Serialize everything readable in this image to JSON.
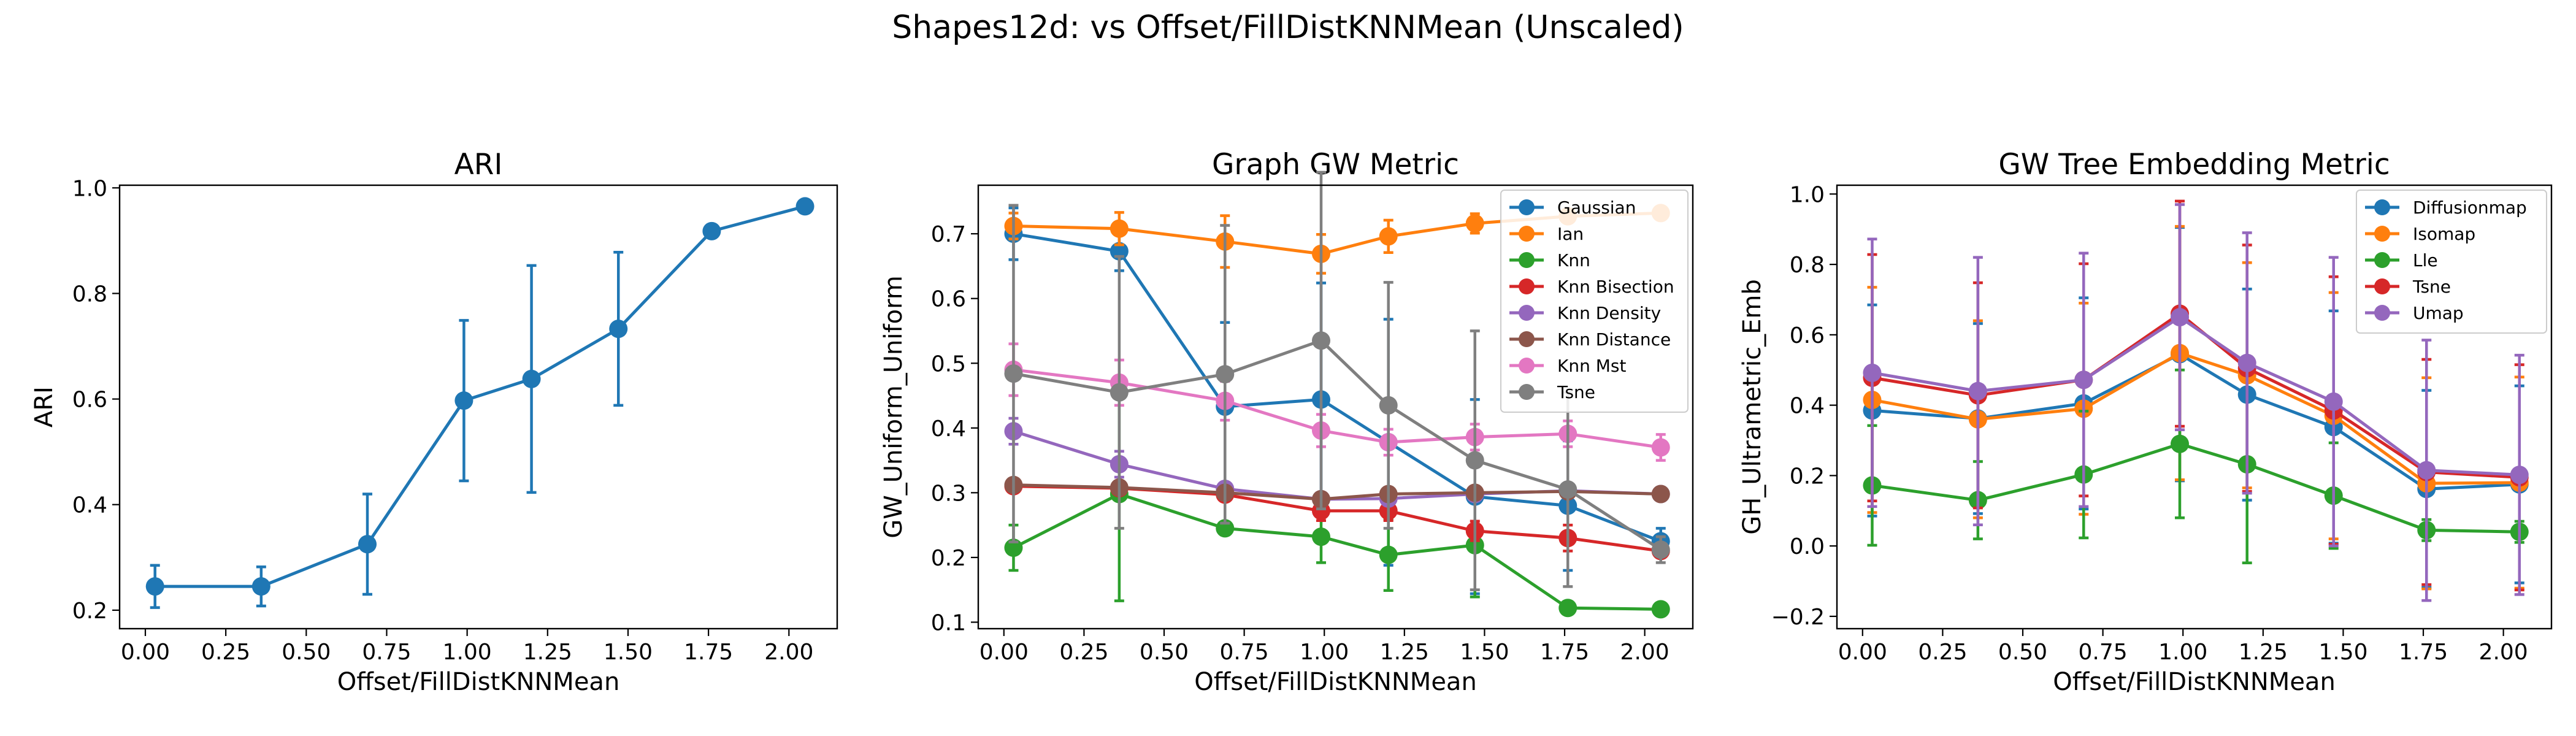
{
  "figure": {
    "title": "Shapes12d: vs Offset/FillDistKNNMean (Unscaled)"
  },
  "chart_data": [
    {
      "type": "line",
      "title": "ARI",
      "xlabel": "Offset/FillDistKNNMean",
      "ylabel": "ARI",
      "xlim": [
        -0.08,
        2.15
      ],
      "ylim": [
        0.165,
        1.005
      ],
      "xticks": [
        0.0,
        0.25,
        0.5,
        0.75,
        1.0,
        1.25,
        1.5,
        1.75,
        2.0
      ],
      "xtick_labels": [
        "0.00",
        "0.25",
        "0.50",
        "0.75",
        "1.00",
        "1.25",
        "1.50",
        "1.75",
        "2.00"
      ],
      "yticks": [
        0.2,
        0.4,
        0.6,
        0.8,
        1.0
      ],
      "ytick_labels": [
        "0.2",
        "0.4",
        "0.6",
        "0.8",
        "1.0"
      ],
      "x": [
        0.03,
        0.36,
        0.69,
        0.99,
        1.2,
        1.47,
        1.76,
        2.05
      ],
      "legend": null,
      "series": [
        {
          "name": "",
          "color": "#1f77b4",
          "values": [
            0.245,
            0.245,
            0.325,
            0.597,
            0.638,
            0.733,
            0.918,
            0.965
          ],
          "errors": [
            0.04,
            0.037,
            0.095,
            0.152,
            0.215,
            0.145,
            0.0,
            0.0
          ]
        }
      ]
    },
    {
      "type": "line",
      "title": "Graph GW Metric",
      "xlabel": "Offset/FillDistKNNMean",
      "ylabel": "GW_Uniform_Uniform",
      "xlim": [
        -0.08,
        2.15
      ],
      "ylim": [
        0.09,
        0.775
      ],
      "xticks": [
        0.0,
        0.25,
        0.5,
        0.75,
        1.0,
        1.25,
        1.5,
        1.75,
        2.0
      ],
      "xtick_labels": [
        "0.00",
        "0.25",
        "0.50",
        "0.75",
        "1.00",
        "1.25",
        "1.50",
        "1.75",
        "2.00"
      ],
      "yticks": [
        0.1,
        0.2,
        0.3,
        0.4,
        0.5,
        0.6,
        0.7
      ],
      "ytick_labels": [
        "0.1",
        "0.2",
        "0.3",
        "0.4",
        "0.5",
        "0.6",
        "0.7"
      ],
      "x": [
        0.03,
        0.36,
        0.69,
        0.99,
        1.2,
        1.47,
        1.76,
        2.05
      ],
      "legend": "upper right",
      "series": [
        {
          "name": "Gaussian",
          "color": "#1f77b4",
          "values": [
            0.7,
            0.673,
            0.433,
            0.444,
            0.378,
            0.294,
            0.28,
            0.225
          ],
          "errors": [
            0.04,
            0.03,
            0.13,
            0.18,
            0.19,
            0.15,
            0.1,
            0.02
          ]
        },
        {
          "name": "Ian",
          "color": "#ff7f0e",
          "values": [
            0.712,
            0.708,
            0.688,
            0.669,
            0.696,
            0.716,
            0.727,
            0.732
          ],
          "errors": [
            0.02,
            0.025,
            0.04,
            0.03,
            0.025,
            0.015,
            0.01,
            0.01
          ]
        },
        {
          "name": "Knn",
          "color": "#2ca02c",
          "values": [
            0.215,
            0.298,
            0.245,
            0.232,
            0.204,
            0.219,
            0.122,
            0.12
          ],
          "errors": [
            0.035,
            0.165,
            0.01,
            0.04,
            0.055,
            0.08,
            0.01,
            0.005
          ]
        },
        {
          "name": "Knn Bisection",
          "color": "#d62728",
          "values": [
            0.31,
            0.307,
            0.297,
            0.272,
            0.272,
            0.241,
            0.23,
            0.21
          ],
          "errors": [
            0.01,
            0.01,
            0.01,
            0.015,
            0.015,
            0.015,
            0.02,
            0.01
          ]
        },
        {
          "name": "Knn Density",
          "color": "#9467bd",
          "values": [
            0.395,
            0.344,
            0.306,
            0.29,
            0.291,
            0.298,
            0.303,
            0.298
          ],
          "errors": [
            0.02,
            0.02,
            0.01,
            0.01,
            0.01,
            0.01,
            0.01,
            0.01
          ]
        },
        {
          "name": "Knn Distance",
          "color": "#8c564b",
          "values": [
            0.312,
            0.308,
            0.3,
            0.29,
            0.298,
            0.3,
            0.302,
            0.298
          ],
          "errors": [
            0.01,
            0.01,
            0.01,
            0.01,
            0.01,
            0.01,
            0.01,
            0.01
          ]
        },
        {
          "name": "Knn Mst",
          "color": "#e377c2",
          "values": [
            0.49,
            0.47,
            0.442,
            0.396,
            0.378,
            0.386,
            0.391,
            0.37
          ],
          "errors": [
            0.04,
            0.035,
            0.03,
            0.025,
            0.02,
            0.02,
            0.02,
            0.02
          ]
        },
        {
          "name": "Tsne",
          "color": "#7f7f7f",
          "values": [
            0.484,
            0.455,
            0.483,
            0.535,
            0.435,
            0.35,
            0.305,
            0.212
          ],
          "errors": [
            0.26,
            0.21,
            0.23,
            0.26,
            0.19,
            0.2,
            0.15,
            0.02
          ]
        }
      ]
    },
    {
      "type": "line",
      "title": "GW Tree Embedding Metric",
      "xlabel": "Offset/FillDistKNNMean",
      "ylabel": "GH_Ultrametric_Emb",
      "xlim": [
        -0.08,
        2.15
      ],
      "ylim": [
        -0.235,
        1.025
      ],
      "xticks": [
        0.0,
        0.25,
        0.5,
        0.75,
        1.0,
        1.25,
        1.5,
        1.75,
        2.0
      ],
      "xtick_labels": [
        "0.00",
        "0.25",
        "0.50",
        "0.75",
        "1.00",
        "1.25",
        "1.50",
        "1.75",
        "2.00"
      ],
      "yticks": [
        -0.2,
        0.0,
        0.2,
        0.4,
        0.6,
        0.8,
        1.0
      ],
      "ytick_labels": [
        "−0.2",
        "0.0",
        "0.2",
        "0.4",
        "0.6",
        "0.8",
        "1.0"
      ],
      "x": [
        0.03,
        0.36,
        0.69,
        0.99,
        1.2,
        1.47,
        1.76,
        2.05
      ],
      "legend": "upper right",
      "series": [
        {
          "name": "Diffusionmap",
          "color": "#1f77b4",
          "values": [
            0.385,
            0.362,
            0.405,
            0.545,
            0.43,
            0.338,
            0.162,
            0.175
          ],
          "errors": [
            0.3,
            0.27,
            0.3,
            0.36,
            0.3,
            0.33,
            0.28,
            0.28
          ]
        },
        {
          "name": "Isomap",
          "color": "#ff7f0e",
          "values": [
            0.415,
            0.36,
            0.39,
            0.548,
            0.485,
            0.37,
            0.178,
            0.18
          ],
          "errors": [
            0.32,
            0.28,
            0.3,
            0.36,
            0.32,
            0.35,
            0.3,
            0.3
          ]
        },
        {
          "name": "Lle",
          "color": "#2ca02c",
          "values": [
            0.172,
            0.13,
            0.203,
            0.29,
            0.232,
            0.143,
            0.045,
            0.04
          ],
          "errors": [
            0.17,
            0.11,
            0.18,
            0.21,
            0.28,
            0.15,
            0.03,
            0.03
          ]
        },
        {
          "name": "Tsne",
          "color": "#d62728",
          "values": [
            0.478,
            0.428,
            0.472,
            0.66,
            0.505,
            0.385,
            0.21,
            0.195
          ],
          "errors": [
            0.35,
            0.32,
            0.33,
            0.32,
            0.35,
            0.38,
            0.32,
            0.32
          ]
        },
        {
          "name": "Umap",
          "color": "#9467bd",
          "values": [
            0.492,
            0.44,
            0.472,
            0.65,
            0.52,
            0.41,
            0.215,
            0.202
          ],
          "errors": [
            0.38,
            0.38,
            0.36,
            0.32,
            0.37,
            0.41,
            0.37,
            0.34
          ]
        }
      ]
    }
  ]
}
